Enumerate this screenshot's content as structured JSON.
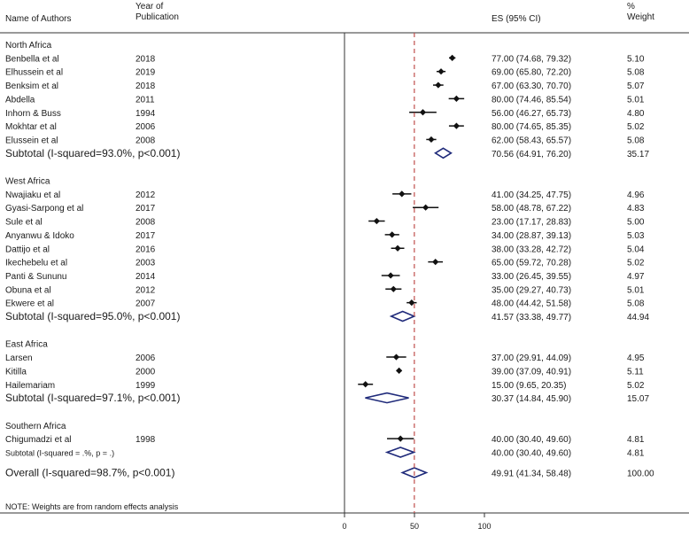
{
  "headers": {
    "authors": "Name of Authors",
    "year_line1": "Year of",
    "year_line2": "Publication",
    "es": "ES (95% CI)",
    "weight_line1": "%",
    "weight_line2": "Weight"
  },
  "note": "NOTE: Weights are from random effects analysis",
  "colors": {
    "marker": "#111111",
    "diamond": "#1f2a7a",
    "reference_line": "#c0504d",
    "frame": "#333333"
  },
  "chart_data": {
    "type": "forest",
    "xlim": [
      0,
      100
    ],
    "x_ticks": [
      "0",
      "50",
      "100"
    ],
    "overall_reference": 49.91,
    "groups": [
      {
        "name": "North Africa",
        "studies": [
          {
            "author": "Benbella et al",
            "year": "2018",
            "es": 77.0,
            "lo": 74.68,
            "hi": 79.32,
            "es_text": "77.00 (74.68, 79.32)",
            "weight": "5.10"
          },
          {
            "author": "Elhussein et al",
            "year": "2019",
            "es": 69.0,
            "lo": 65.8,
            "hi": 72.2,
            "es_text": "69.00 (65.80, 72.20)",
            "weight": "5.08"
          },
          {
            "author": "Benksim et al",
            "year": "2018",
            "es": 67.0,
            "lo": 63.3,
            "hi": 70.7,
            "es_text": "67.00 (63.30, 70.70)",
            "weight": "5.07"
          },
          {
            "author": "Abdella",
            "year": "2011",
            "es": 80.0,
            "lo": 74.46,
            "hi": 85.54,
            "es_text": "80.00 (74.46, 85.54)",
            "weight": "5.01"
          },
          {
            "author": "Inhorn & Buss",
            "year": "1994",
            "es": 56.0,
            "lo": 46.27,
            "hi": 65.73,
            "es_text": "56.00 (46.27, 65.73)",
            "weight": "4.80"
          },
          {
            "author": "Mokhtar et al",
            "year": "2006",
            "es": 80.0,
            "lo": 74.65,
            "hi": 85.35,
            "es_text": "80.00 (74.65, 85.35)",
            "weight": "5.02"
          },
          {
            "author": "Elussein et al",
            "year": "2008",
            "es": 62.0,
            "lo": 58.43,
            "hi": 65.57,
            "es_text": "62.00 (58.43, 65.57)",
            "weight": "5.08"
          }
        ],
        "subtotal": {
          "label": "Subtotal  (I-squared=93.0%, p<0.001)",
          "es": 70.56,
          "lo": 64.91,
          "hi": 76.2,
          "es_text": "70.56 (64.91, 76.20)",
          "weight": "35.17"
        }
      },
      {
        "name": "West Africa",
        "studies": [
          {
            "author": "Nwajiaku et al",
            "year": "2012",
            "es": 41.0,
            "lo": 34.25,
            "hi": 47.75,
            "es_text": "41.00 (34.25, 47.75)",
            "weight": "4.96"
          },
          {
            "author": "Gyasi-Sarpong et al",
            "year": "2017",
            "es": 58.0,
            "lo": 48.78,
            "hi": 67.22,
            "es_text": "58.00 (48.78, 67.22)",
            "weight": "4.83"
          },
          {
            "author": "Sule et al",
            "year": "2008",
            "es": 23.0,
            "lo": 17.17,
            "hi": 28.83,
            "es_text": "23.00 (17.17, 28.83)",
            "weight": "5.00"
          },
          {
            "author": "Anyanwu & Idoko",
            "year": "2017",
            "es": 34.0,
            "lo": 28.87,
            "hi": 39.13,
            "es_text": "34.00 (28.87, 39.13)",
            "weight": "5.03"
          },
          {
            "author": "Dattijo et al",
            "year": "2016",
            "es": 38.0,
            "lo": 33.28,
            "hi": 42.72,
            "es_text": "38.00 (33.28, 42.72)",
            "weight": "5.04"
          },
          {
            "author": "Ikechebelu et al",
            "year": "2003",
            "es": 65.0,
            "lo": 59.72,
            "hi": 70.28,
            "es_text": "65.00 (59.72, 70.28)",
            "weight": "5.02"
          },
          {
            "author": "Panti & Sununu",
            "year": "2014",
            "es": 33.0,
            "lo": 26.45,
            "hi": 39.55,
            "es_text": "33.00 (26.45, 39.55)",
            "weight": "4.97"
          },
          {
            "author": "Obuna et al",
            "year": "2012",
            "es": 35.0,
            "lo": 29.27,
            "hi": 40.73,
            "es_text": "35.00 (29.27, 40.73)",
            "weight": "5.01"
          },
          {
            "author": "Ekwere et al",
            "year": "2007",
            "es": 48.0,
            "lo": 44.42,
            "hi": 51.58,
            "es_text": "48.00 (44.42, 51.58)",
            "weight": "5.08"
          }
        ],
        "subtotal": {
          "label": "Subtotal  (I-squared=95.0%, p<0.001)",
          "es": 41.57,
          "lo": 33.38,
          "hi": 49.77,
          "es_text": "41.57 (33.38, 49.77)",
          "weight": "44.94"
        }
      },
      {
        "name": "East Africa",
        "studies": [
          {
            "author": "Larsen",
            "year": "2006",
            "es": 37.0,
            "lo": 29.91,
            "hi": 44.09,
            "es_text": "37.00 (29.91, 44.09)",
            "weight": "4.95"
          },
          {
            "author": "Kitilla",
            "year": "2000",
            "es": 39.0,
            "lo": 37.09,
            "hi": 40.91,
            "es_text": "39.00 (37.09, 40.91)",
            "weight": "5.11"
          },
          {
            "author": "Hailemariam",
            "year": "1999",
            "es": 15.0,
            "lo": 9.65,
            "hi": 20.35,
            "es_text": "15.00 (9.65, 20.35)",
            "weight": "5.02"
          }
        ],
        "subtotal": {
          "label": "Subtotal  (I-squared=97.1%, p<0.001)",
          "es": 30.37,
          "lo": 14.84,
          "hi": 45.9,
          "es_text": "30.37 (14.84, 45.90)",
          "weight": "15.07"
        }
      },
      {
        "name": "Southern Africa",
        "studies": [
          {
            "author": "Chigumadzi et al",
            "year": "1998",
            "es": 40.0,
            "lo": 30.4,
            "hi": 49.6,
            "es_text": "40.00 (30.40, 49.60)",
            "weight": "4.81"
          }
        ],
        "subtotal": {
          "label": "Subtotal  (I-squared = .%, p = .)",
          "es": 40.0,
          "lo": 30.4,
          "hi": 49.6,
          "es_text": "40.00 (30.40, 49.60)",
          "weight": "4.81",
          "small": true
        }
      }
    ],
    "overall": {
      "label": "Overall  (I-squared=98.7%, p<0.001)",
      "es": 49.91,
      "lo": 41.34,
      "hi": 58.48,
      "es_text": "49.91 (41.34, 58.48)",
      "weight": "100.00"
    }
  }
}
